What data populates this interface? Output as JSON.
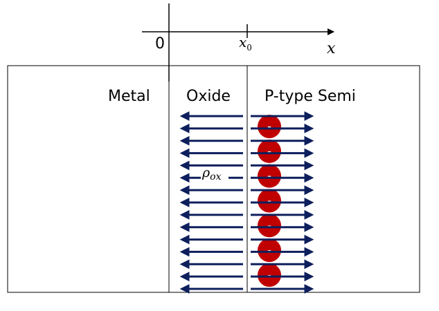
{
  "axis": {
    "origin_label": "0",
    "x0_base": "x",
    "x0_sub": "0",
    "x_label": "x"
  },
  "regions": {
    "metal": "Metal",
    "oxide": "Oxide",
    "semi": "P-type Semi"
  },
  "oxide_charge_label": "ρ",
  "oxide_charge_sub": "ox",
  "charge_symbol": "-",
  "colors": {
    "field_arrow": "#0d1f5c",
    "acceptor_charge": "#c00000",
    "box_border": "#000000"
  },
  "counts": {
    "field_arrows": 15,
    "acceptor_ions": 7
  }
}
